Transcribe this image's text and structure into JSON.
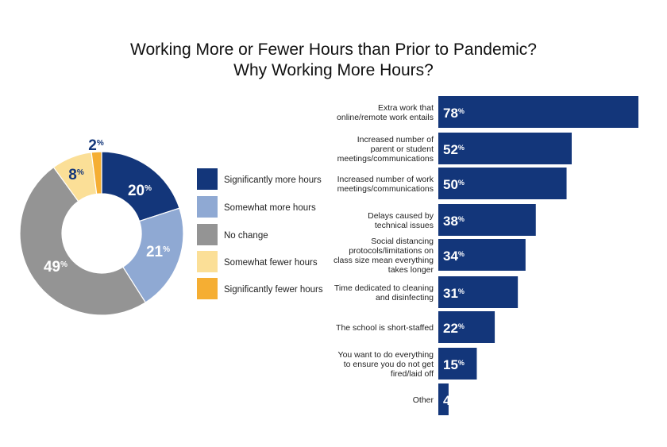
{
  "title_line_1": "Working More or Fewer Hours than Prior to Pandemic?",
  "title_line_2": "Why Working More Hours?",
  "chart_data": [
    {
      "type": "pie",
      "variant": "donut",
      "categories": [
        "Significantly more hours",
        "Somewhat more hours",
        "No change",
        "Somewhat fewer hours",
        "Significantly fewer hours"
      ],
      "values": [
        20,
        21,
        49,
        8,
        2
      ],
      "value_suffix": "%",
      "colors": [
        "#13367a",
        "#8fa9d3",
        "#949494",
        "#fbdf97",
        "#f5ae33"
      ],
      "legend_placement": "right"
    },
    {
      "type": "bar",
      "orientation": "horizontal",
      "categories": [
        [
          "Extra work that",
          "online/remote work entails"
        ],
        [
          "Increased number of",
          "parent or student",
          "meetings/communications"
        ],
        [
          "Increased number of work",
          "meetings/communications"
        ],
        [
          "Delays caused by",
          "technical issues"
        ],
        [
          "Social distancing",
          "protocols/limitations on",
          "class size mean everything",
          "takes longer"
        ],
        [
          "Time dedicated to cleaning",
          "and disinfecting"
        ],
        [
          "The school is short-staffed"
        ],
        [
          "You want to do everything",
          "to ensure you do not get",
          "fired/laid off"
        ],
        [
          "Other"
        ]
      ],
      "values": [
        78,
        52,
        50,
        38,
        34,
        31,
        22,
        15,
        4
      ],
      "value_suffix": "%",
      "bar_color": "#13367a",
      "xlim": [
        0,
        78
      ]
    }
  ]
}
